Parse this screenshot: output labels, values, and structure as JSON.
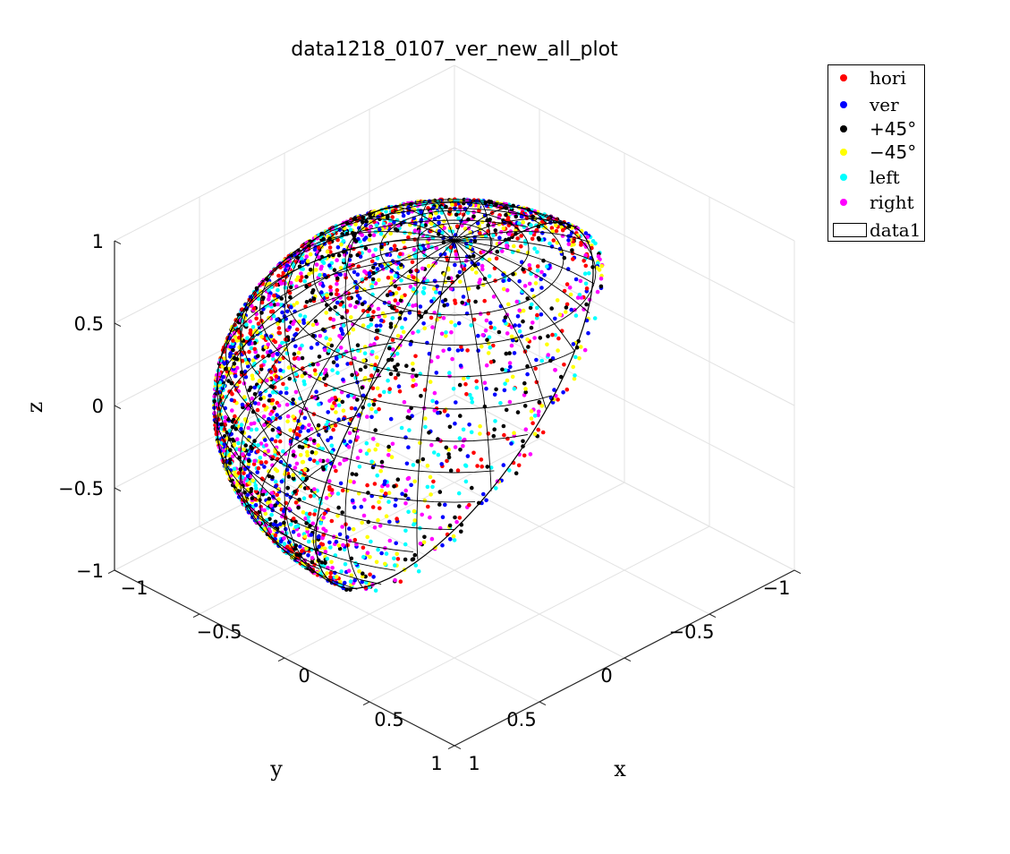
{
  "chart_data": {
    "type": "scatter",
    "projection": "3d",
    "title": "data1218_0107_ver_new_all_plot",
    "xlabel": "x",
    "ylabel": "y",
    "zlabel": "z",
    "xlim": [
      -1,
      1
    ],
    "ylim": [
      -1,
      1
    ],
    "zlim": [
      -1,
      1
    ],
    "xticks": [
      "−1",
      "−0.5",
      "0",
      "0.5",
      "1"
    ],
    "yticks": [
      "−1",
      "−0.5",
      "0",
      "0.5",
      "1"
    ],
    "zticks": [
      "−1",
      "−0.5",
      "0",
      "0.5",
      "1"
    ],
    "grid": true,
    "legend_position": "top-right, outside",
    "surface": {
      "name": "data1",
      "shape": "unit sphere",
      "radius": 1,
      "edge_color": "#000000",
      "face_color": "none"
    },
    "series": [
      {
        "name": "hori",
        "color": "#ff0000",
        "marker": "dot",
        "distribution": "uniform on unit sphere"
      },
      {
        "name": "ver",
        "color": "#0000ff",
        "marker": "dot",
        "distribution": "uniform on unit sphere"
      },
      {
        "name": "+45°",
        "color": "#000000",
        "marker": "dot",
        "distribution": "uniform on unit sphere"
      },
      {
        "name": "−45°",
        "color": "#ffff00",
        "marker": "dot",
        "distribution": "uniform on unit sphere"
      },
      {
        "name": "left",
        "color": "#00ffff",
        "marker": "dot",
        "distribution": "uniform on unit sphere"
      },
      {
        "name": "right",
        "color": "#ff00ff",
        "marker": "dot",
        "distribution": "uniform on unit sphere"
      }
    ]
  }
}
